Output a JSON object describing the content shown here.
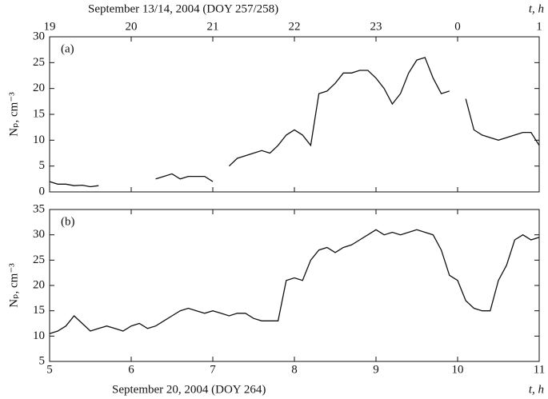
{
  "chart_data": [
    {
      "type": "line",
      "date_label": "September 13/14, 2004 (DOY 257/258)",
      "xlabel": "t, h",
      "ylabel": "Nₚ, cm⁻³",
      "panel_label": "(a)",
      "xlim": [
        19,
        25
      ],
      "xticks": [
        19,
        20,
        21,
        22,
        23,
        {
          "value": 24,
          "label": "0"
        },
        {
          "value": 25,
          "label": "1"
        }
      ],
      "ylim": [
        0,
        30
      ],
      "yticks": [
        0,
        5,
        10,
        15,
        20,
        25,
        30
      ],
      "x": [
        19.0,
        19.1,
        19.2,
        19.3,
        19.4,
        19.5,
        19.6,
        19.7,
        19.8,
        19.9,
        20.0,
        20.1,
        20.2,
        20.3,
        20.4,
        20.5,
        20.6,
        20.7,
        20.8,
        20.9,
        21.0,
        21.1,
        21.2,
        21.3,
        21.4,
        21.5,
        21.6,
        21.7,
        21.8,
        21.9,
        22.0,
        22.1,
        22.2,
        22.3,
        22.4,
        22.5,
        22.6,
        22.7,
        22.8,
        22.9,
        23.0,
        23.1,
        23.2,
        23.3,
        23.4,
        23.5,
        23.6,
        23.7,
        23.8,
        23.9,
        24.0,
        24.1,
        24.2,
        24.3,
        24.4,
        24.5,
        24.6,
        24.7,
        24.8,
        24.9,
        25.0
      ],
      "series": [
        {
          "color": "#111111",
          "values": [
            2,
            1.5,
            1.5,
            1.2,
            1.3,
            1,
            1.2,
            null,
            null,
            null,
            null,
            null,
            null,
            2.5,
            3,
            3.5,
            2.5,
            3,
            3,
            3,
            2,
            null,
            5,
            6.5,
            7,
            7.5,
            8,
            7.5,
            9,
            11,
            12,
            11,
            9,
            19,
            19.5,
            21,
            23,
            23,
            23.5,
            23.5,
            22,
            20,
            17,
            19,
            23,
            25.5,
            26,
            22,
            19,
            19.5,
            null,
            18,
            12,
            11,
            10.5,
            10,
            10.5,
            11,
            11.5,
            11.5,
            9
          ]
        }
      ]
    },
    {
      "type": "line",
      "date_label": "September 20, 2004 (DOY 264)",
      "xlabel": "t, h",
      "ylabel": "Nₚ, cm⁻³",
      "panel_label": "(b)",
      "xlim": [
        5,
        11
      ],
      "xticks": [
        5,
        6,
        7,
        8,
        9,
        10,
        11
      ],
      "ylim": [
        5,
        35
      ],
      "yticks": [
        5,
        10,
        15,
        20,
        25,
        30,
        35
      ],
      "x": [
        5.0,
        5.1,
        5.2,
        5.3,
        5.4,
        5.5,
        5.6,
        5.7,
        5.8,
        5.9,
        6.0,
        6.1,
        6.2,
        6.3,
        6.4,
        6.5,
        6.6,
        6.7,
        6.8,
        6.9,
        7.0,
        7.1,
        7.2,
        7.3,
        7.4,
        7.5,
        7.6,
        7.7,
        7.8,
        7.9,
        8.0,
        8.1,
        8.2,
        8.3,
        8.4,
        8.5,
        8.6,
        8.7,
        8.8,
        8.9,
        9.0,
        9.1,
        9.2,
        9.3,
        9.4,
        9.5,
        9.6,
        9.7,
        9.8,
        9.9,
        10.0,
        10.1,
        10.2,
        10.3,
        10.4,
        10.5,
        10.6,
        10.7,
        10.8,
        10.9,
        11.0
      ],
      "series": [
        {
          "color": "#111111",
          "values": [
            10.5,
            11,
            12,
            14,
            12.5,
            11,
            11.5,
            12,
            11.5,
            11,
            12,
            12.5,
            11.5,
            12,
            13,
            14,
            15,
            15.5,
            15,
            14.5,
            15,
            14.5,
            14,
            14.5,
            14.5,
            13.5,
            13,
            13,
            13,
            21,
            21.5,
            21,
            25,
            27,
            27.5,
            26.5,
            27.5,
            28,
            29,
            30,
            31,
            30,
            30.5,
            30,
            30.5,
            31,
            30.5,
            30,
            27,
            22,
            21,
            17,
            15.5,
            15,
            15,
            21,
            24,
            29,
            30,
            29,
            29.5
          ]
        }
      ]
    }
  ]
}
